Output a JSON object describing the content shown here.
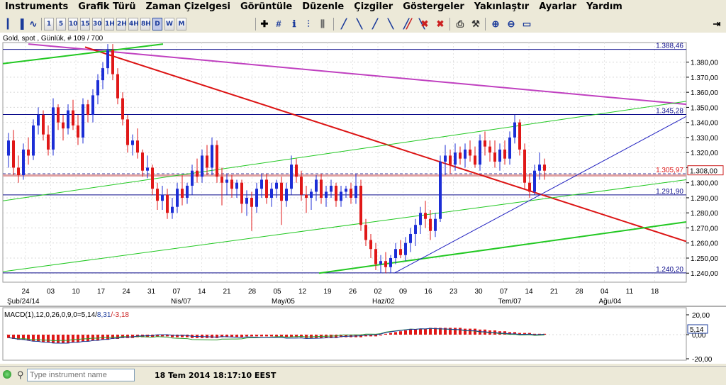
{
  "menu": [
    "Instruments",
    "Grafik Türü",
    "Zaman Çizelgesi",
    "Görüntüle",
    "Düzenle",
    "Çizgiler",
    "Göstergeler",
    "Yakınlaştır",
    "Ayarlar",
    "Yardım"
  ],
  "toolbar": {
    "timeframes": [
      "1",
      "5",
      "10",
      "15",
      "30",
      "1H",
      "2H",
      "4H",
      "8H",
      "D",
      "W",
      "M"
    ],
    "active_timeframe": "D",
    "icons": [
      "bar-chart-icon",
      "candle-chart-icon",
      "line-chart-icon",
      "crosshair-icon",
      "grid-icon",
      "info-icon",
      "pattern-icon",
      "fib-icon",
      "trendline-icon",
      "channel-icon",
      "gann-icon",
      "pitchfork-icon",
      "fan-icon",
      "delete-line-icon",
      "delete-all-icon",
      "print-icon",
      "settings-icon",
      "zoom-in-icon",
      "zoom-out-icon",
      "zoom-reset-icon"
    ],
    "collapse_icon": "collapse-icon"
  },
  "chart": {
    "title": "Gold, spot , Günlük, # 109 / 700",
    "price_labels": [
      "1.388,46",
      "1.345,28",
      "1.305,97",
      "1.308,00",
      "1.291,90",
      "1.240,20"
    ],
    "y_ticks": [
      "1.380,00",
      "1.370,00",
      "1.360,00",
      "1.350,00",
      "1.340,00",
      "1.330,00",
      "1.320,00",
      "1.310,00",
      "1.300,00",
      "1.290,00",
      "1.280,00",
      "1.270,00",
      "1.260,00",
      "1.250,00",
      "1.240,00"
    ],
    "x_days": [
      "24",
      "03",
      "10",
      "17",
      "24",
      "31",
      "07",
      "14",
      "21",
      "28",
      "05",
      "12",
      "19",
      "26",
      "02",
      "09",
      "16",
      "23",
      "30",
      "07",
      "14",
      "21",
      "28",
      "04",
      "11",
      "18"
    ],
    "x_months": [
      "Şub/24/14",
      "Nis/07",
      "May/05",
      "Haz/02",
      "Tem/07",
      "Ağu/04"
    ],
    "colors": {
      "up": "#1c2ed6",
      "down": "#e01818",
      "support": "#0a0a8a",
      "trend_red": "#dc1414",
      "channel_green": "#22c822",
      "purple": "#c040c0"
    }
  },
  "chart_data": {
    "type": "candlestick",
    "series": "Gold, spot, daily",
    "current_price": 1308.0,
    "horizontal_levels": [
      1388.46,
      1345.28,
      1305.97,
      1291.9,
      1240.2
    ],
    "candles": [
      [
        1318,
        1333,
        1310,
        1328
      ],
      [
        1328,
        1335,
        1305,
        1310
      ],
      [
        1310,
        1318,
        1300,
        1305
      ],
      [
        1305,
        1326,
        1302,
        1322
      ],
      [
        1322,
        1330,
        1312,
        1318
      ],
      [
        1318,
        1342,
        1315,
        1338
      ],
      [
        1338,
        1350,
        1332,
        1345
      ],
      [
        1345,
        1348,
        1328,
        1332
      ],
      [
        1332,
        1338,
        1318,
        1322
      ],
      [
        1322,
        1356,
        1318,
        1350
      ],
      [
        1350,
        1352,
        1335,
        1340
      ],
      [
        1340,
        1345,
        1328,
        1336
      ],
      [
        1336,
        1352,
        1332,
        1348
      ],
      [
        1348,
        1355,
        1335,
        1338
      ],
      [
        1338,
        1345,
        1325,
        1330
      ],
      [
        1330,
        1356,
        1326,
        1352
      ],
      [
        1352,
        1355,
        1340,
        1345
      ],
      [
        1345,
        1362,
        1340,
        1358
      ],
      [
        1358,
        1372,
        1352,
        1368
      ],
      [
        1368,
        1380,
        1362,
        1376
      ],
      [
        1376,
        1392,
        1372,
        1388
      ],
      [
        1388,
        1392,
        1368,
        1372
      ],
      [
        1372,
        1376,
        1352,
        1356
      ],
      [
        1356,
        1360,
        1338,
        1342
      ],
      [
        1342,
        1345,
        1320,
        1325
      ],
      [
        1325,
        1332,
        1318,
        1328
      ],
      [
        1328,
        1336,
        1316,
        1320
      ],
      [
        1320,
        1322,
        1304,
        1308
      ],
      [
        1308,
        1318,
        1303,
        1310
      ],
      [
        1310,
        1312,
        1292,
        1296
      ],
      [
        1296,
        1300,
        1282,
        1288
      ],
      [
        1288,
        1298,
        1282,
        1292
      ],
      [
        1292,
        1296,
        1276,
        1280
      ],
      [
        1280,
        1290,
        1276,
        1284
      ],
      [
        1284,
        1300,
        1280,
        1296
      ],
      [
        1296,
        1305,
        1285,
        1290
      ],
      [
        1290,
        1300,
        1286,
        1298
      ],
      [
        1298,
        1312,
        1292,
        1308
      ],
      [
        1308,
        1316,
        1300,
        1304
      ],
      [
        1304,
        1322,
        1300,
        1318
      ],
      [
        1318,
        1325,
        1305,
        1310
      ],
      [
        1310,
        1330,
        1305,
        1325
      ],
      [
        1325,
        1328,
        1300,
        1304
      ],
      [
        1304,
        1310,
        1285,
        1300
      ],
      [
        1300,
        1306,
        1292,
        1302
      ],
      [
        1302,
        1305,
        1290,
        1296
      ],
      [
        1296,
        1302,
        1290,
        1300
      ],
      [
        1300,
        1302,
        1280,
        1286
      ],
      [
        1286,
        1295,
        1278,
        1290
      ],
      [
        1290,
        1294,
        1268,
        1284
      ],
      [
        1284,
        1300,
        1280,
        1296
      ],
      [
        1296,
        1306,
        1290,
        1302
      ],
      [
        1302,
        1306,
        1286,
        1290
      ],
      [
        1290,
        1300,
        1284,
        1296
      ],
      [
        1296,
        1302,
        1290,
        1300
      ],
      [
        1300,
        1304,
        1272,
        1288
      ],
      [
        1288,
        1300,
        1284,
        1296
      ],
      [
        1296,
        1318,
        1292,
        1312
      ],
      [
        1312,
        1316,
        1300,
        1304
      ],
      [
        1304,
        1308,
        1288,
        1292
      ],
      [
        1292,
        1298,
        1280,
        1290
      ],
      [
        1290,
        1296,
        1282,
        1294
      ],
      [
        1294,
        1305,
        1288,
        1302
      ],
      [
        1302,
        1306,
        1286,
        1290
      ],
      [
        1290,
        1298,
        1284,
        1294
      ],
      [
        1294,
        1302,
        1290,
        1298
      ],
      [
        1298,
        1300,
        1284,
        1288
      ],
      [
        1288,
        1298,
        1284,
        1294
      ],
      [
        1294,
        1298,
        1290,
        1296
      ],
      [
        1296,
        1300,
        1286,
        1290
      ],
      [
        1290,
        1306,
        1286,
        1298
      ],
      [
        1298,
        1302,
        1268,
        1272
      ],
      [
        1272,
        1276,
        1258,
        1262
      ],
      [
        1262,
        1266,
        1250,
        1256
      ],
      [
        1256,
        1260,
        1242,
        1246
      ],
      [
        1246,
        1252,
        1240,
        1248
      ],
      [
        1248,
        1254,
        1240,
        1244
      ],
      [
        1244,
        1252,
        1240,
        1250
      ],
      [
        1250,
        1260,
        1246,
        1256
      ],
      [
        1256,
        1262,
        1250,
        1252
      ],
      [
        1252,
        1264,
        1248,
        1260
      ],
      [
        1260,
        1270,
        1254,
        1266
      ],
      [
        1266,
        1276,
        1258,
        1272
      ],
      [
        1272,
        1284,
        1266,
        1280
      ],
      [
        1280,
        1288,
        1270,
        1276
      ],
      [
        1276,
        1282,
        1262,
        1268
      ],
      [
        1268,
        1280,
        1264,
        1276
      ],
      [
        1276,
        1318,
        1274,
        1314
      ],
      [
        1314,
        1325,
        1305,
        1318
      ],
      [
        1318,
        1322,
        1306,
        1312
      ],
      [
        1312,
        1326,
        1308,
        1320
      ],
      [
        1320,
        1324,
        1312,
        1316
      ],
      [
        1316,
        1326,
        1310,
        1322
      ],
      [
        1322,
        1328,
        1314,
        1318
      ],
      [
        1318,
        1324,
        1310,
        1312
      ],
      [
        1312,
        1332,
        1308,
        1328
      ],
      [
        1328,
        1334,
        1318,
        1324
      ],
      [
        1324,
        1328,
        1314,
        1320
      ],
      [
        1320,
        1328,
        1310,
        1314
      ],
      [
        1314,
        1326,
        1308,
        1322
      ],
      [
        1322,
        1328,
        1312,
        1316
      ],
      [
        1316,
        1334,
        1312,
        1330
      ],
      [
        1330,
        1345,
        1326,
        1340
      ],
      [
        1340,
        1342,
        1318,
        1322
      ],
      [
        1322,
        1326,
        1296,
        1300
      ],
      [
        1300,
        1306,
        1290,
        1294
      ],
      [
        1294,
        1312,
        1292,
        1308
      ],
      [
        1308,
        1320,
        1302,
        1312
      ],
      [
        1312,
        1316,
        1302,
        1308
      ]
    ]
  },
  "indicator": {
    "label": "MACD(1),12,0,26,0,9,0=5,14/",
    "value2": "8,31",
    "value3": "/-3,18",
    "ticks": [
      "20,00",
      "0,00",
      "-20,00"
    ],
    "badge": "5,14"
  },
  "status": {
    "search_placeholder": "Type instrument name",
    "datetime": "18 Tem 2014 18:17:10 EEST"
  }
}
